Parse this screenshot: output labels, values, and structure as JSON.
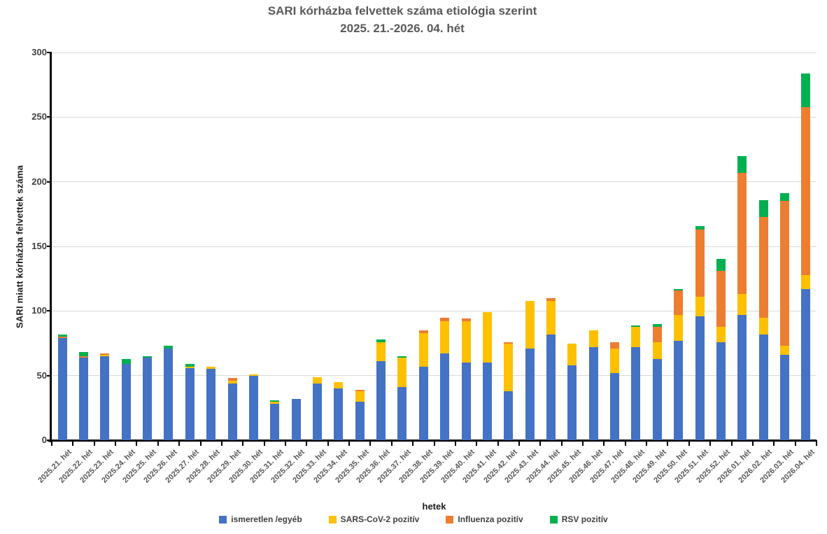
{
  "title": {
    "line1": "SARI kórházba felvettek száma etiológia szerint",
    "line2": "2025. 21.-2026. 04. hét"
  },
  "y_axis": {
    "label": "SARI miatt kórházba felvettek száma",
    "ticks": [
      0,
      50,
      100,
      150,
      200,
      250,
      300
    ]
  },
  "x_axis": {
    "label": "hetek"
  },
  "colors": {
    "unknown_other": "#4472C4",
    "sars_cov_2": "#FFC000",
    "influenza": "#ED7D31",
    "rsv": "#00B050",
    "grid": "#d9d9d9",
    "title_text": "#595959"
  },
  "legend": [
    {
      "label": "ismeretlen /egyéb",
      "color": "#4472C4"
    },
    {
      "label": "SARS-CoV-2 pozitív",
      "color": "#FFC000"
    },
    {
      "label": "Influenza pozitív",
      "color": "#ED7D31"
    },
    {
      "label": "RSV pozitív",
      "color": "#00B050"
    }
  ],
  "chart_data": {
    "type": "bar",
    "stacked": true,
    "title": "SARI kórházba felvettek száma etiológia szerint 2025. 21.-2026. 04. hét",
    "xlabel": "hetek",
    "ylabel": "SARI miatt kórházba felvettek száma",
    "ylim": [
      0,
      300
    ],
    "grid": true,
    "legend_position": "bottom",
    "categories": [
      "2025.21. hét",
      "2025.22. hét",
      "2025.23. hét",
      "2025.24. hét",
      "2025.25. hét",
      "2025.26. hét",
      "2025.27. hét",
      "2025.28. hét",
      "2025.29. hét",
      "2025.30. hét",
      "2025.31. hét",
      "2025.32. hét",
      "2025.33. hét",
      "2025.34. hét",
      "2025.35. hét",
      "2025.36. hét",
      "2025.37. hét",
      "2025.38. hét",
      "2025.39. hét",
      "2025.40. hét",
      "2025.41. hét",
      "2025.42. hét",
      "2025.43. hét",
      "2025.44. hét",
      "2025.45. hét",
      "2025.46. hét",
      "2025.47. hét",
      "2025.48. hét",
      "2025.49. hét",
      "2025.50. hét",
      "2025.51. hét",
      "2025.52. hét",
      "2026.01. hét",
      "2026.02. hét",
      "2026.03. hét",
      "2026.04. hét"
    ],
    "series": [
      {
        "name": "ismeretlen /egyéb",
        "color": "#4472C4",
        "values": [
          79,
          64,
          65,
          59,
          64,
          71,
          56,
          55,
          44,
          50,
          28,
          32,
          44,
          40,
          30,
          61,
          41,
          57,
          67,
          60,
          60,
          38,
          71,
          82,
          58,
          72,
          52,
          72,
          63,
          77,
          96,
          76,
          97,
          82,
          66,
          117
        ]
      },
      {
        "name": "SARS-CoV-2 pozitív",
        "color": "#FFC000",
        "values": [
          0,
          0,
          1,
          0,
          0,
          0,
          1,
          2,
          2,
          1,
          2,
          0,
          5,
          5,
          8,
          15,
          23,
          26,
          25,
          32,
          39,
          37,
          37,
          26,
          17,
          13,
          19,
          16,
          13,
          20,
          15,
          12,
          16,
          13,
          7,
          11
        ]
      },
      {
        "name": "Influenza pozitív",
        "color": "#ED7D31",
        "values": [
          1,
          1,
          1,
          0,
          0,
          0,
          0,
          0,
          2,
          0,
          0,
          0,
          0,
          0,
          1,
          0,
          0,
          2,
          3,
          2,
          0,
          1,
          0,
          2,
          0,
          0,
          5,
          0,
          12,
          19,
          52,
          43,
          94,
          78,
          112,
          130
        ]
      },
      {
        "name": "RSV pozitív",
        "color": "#00B050",
        "values": [
          2,
          3,
          0,
          4,
          1,
          2,
          2,
          0,
          0,
          0,
          1,
          0,
          0,
          0,
          0,
          2,
          1,
          0,
          0,
          0,
          0,
          0,
          0,
          0,
          0,
          0,
          0,
          1,
          2,
          1,
          3,
          9,
          13,
          13,
          6,
          26
        ]
      }
    ]
  }
}
